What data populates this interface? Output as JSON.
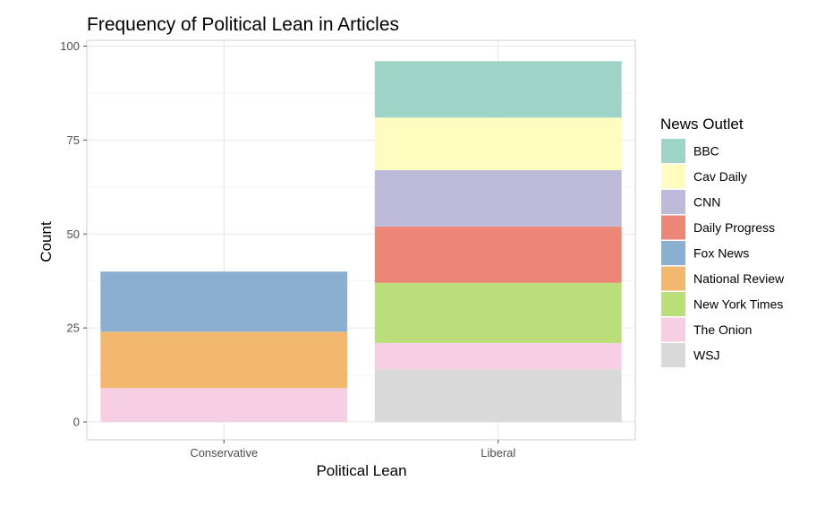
{
  "chart_data": {
    "type": "bar",
    "stacked": true,
    "title": "Frequency of Political Lean in Articles",
    "xlabel": "Political Lean",
    "ylabel": "Count",
    "categories": [
      "Conservative",
      "Liberal"
    ],
    "ylim": [
      0,
      100
    ],
    "yticks": [
      0,
      25,
      50,
      75,
      100
    ],
    "grid": true,
    "legend": {
      "title": "News Outlet",
      "position": "right"
    },
    "series": [
      {
        "name": "BBC",
        "color": "#9ED3C7",
        "values": [
          0,
          15
        ]
      },
      {
        "name": "Cav Daily",
        "color": "#FEFDBF",
        "values": [
          0,
          14
        ]
      },
      {
        "name": "CNN",
        "color": "#BEBADA",
        "values": [
          0,
          15
        ]
      },
      {
        "name": "Daily Progress",
        "color": "#EC8677",
        "values": [
          0,
          15
        ]
      },
      {
        "name": "Fox News",
        "color": "#8BAFD1",
        "values": [
          16,
          0
        ]
      },
      {
        "name": "National Review",
        "color": "#F3B870",
        "values": [
          15,
          0
        ]
      },
      {
        "name": "New York Times",
        "color": "#BADE79",
        "values": [
          0,
          16
        ]
      },
      {
        "name": "The Onion",
        "color": "#F6CFE4",
        "values": [
          9,
          7
        ]
      },
      {
        "name": "WSJ",
        "color": "#D9D9D9",
        "values": [
          0,
          14
        ]
      }
    ]
  }
}
